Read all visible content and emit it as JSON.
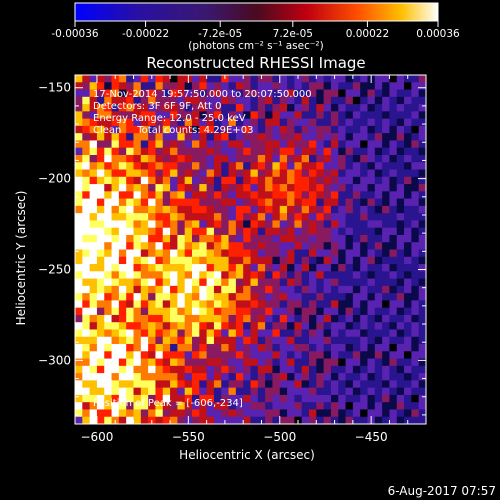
{
  "colorbar": {
    "ticks": [
      "-0.00036",
      "-0.00022",
      "-7.2e-05",
      "7.2e-05",
      "0.00022",
      "0.00036"
    ],
    "tick_values": [
      -0.00036,
      -0.00022,
      -7.2e-05,
      7.2e-05,
      0.00022,
      0.00036
    ],
    "range": [
      -0.00036,
      0.00036
    ],
    "units": "(photons cm⁻² s⁻¹ asec⁻²)"
  },
  "chart_data": {
    "type": "heatmap",
    "title": "Reconstructed RHESSI Image",
    "xlabel": "Heliocentric X (arcsec)",
    "ylabel": "Heliocentric Y (arcsec)",
    "xlim": [
      -612,
      -420
    ],
    "ylim": [
      -335,
      -143
    ],
    "xticks": [
      -600,
      -550,
      -500,
      -450
    ],
    "yticks": [
      -150,
      -200,
      -250,
      -300
    ],
    "xtick_labels": [
      "−600",
      "−550",
      "−500",
      "−450"
    ],
    "ytick_labels": [
      "−150",
      "−200",
      "−250",
      "−300"
    ],
    "peak": [
      -606,
      -234
    ],
    "colormap": [
      "#000000",
      "#0a0a4a",
      "#2a1590",
      "#5a22b0",
      "#8a1a60",
      "#c0101a",
      "#ff2000",
      "#ff7a00",
      "#ffc000",
      "#ffff60",
      "#ffffff"
    ],
    "annotations": [
      "17-Nov-2014 19:57:50.000 to 20:07:50.000",
      "Detectors: 3F 6F 9F, Att 0",
      "Energy Range: 12.0 - 25.0 keV",
      "Clean     Total counts: 4.29E+03",
      "Position of Peak = [-606,-234]"
    ]
  },
  "footer": {
    "date": "6-Aug-2017 07:57"
  }
}
